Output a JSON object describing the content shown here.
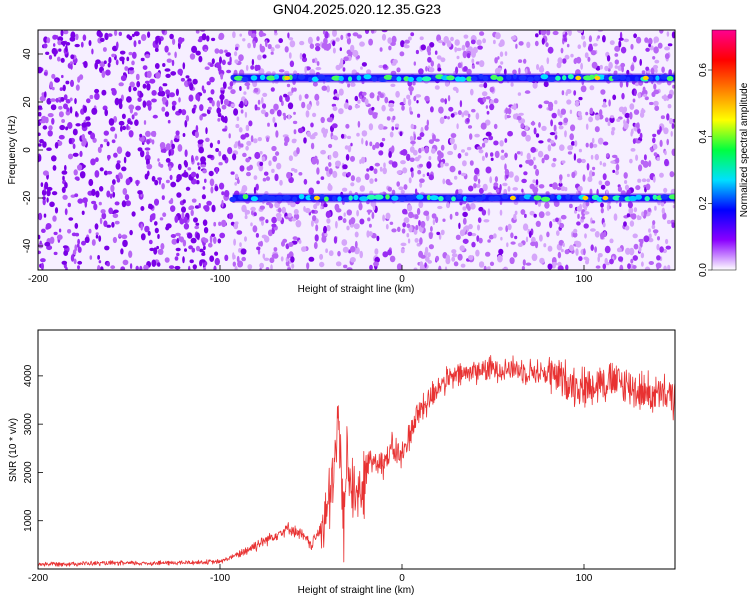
{
  "title": "GN04.2025.020.12.35.G23",
  "colors": {
    "trace": "#e83232",
    "axis": "#000000"
  },
  "chart_data": [
    {
      "type": "heatmap",
      "name": "spectrogram",
      "xlabel": "Height of straight line (km)",
      "ylabel": "Frequency (Hz)",
      "xlim": [
        -200,
        150
      ],
      "ylim": [
        -50,
        50
      ],
      "xticks": [
        -200,
        -100,
        0,
        100
      ],
      "yticks": [
        -40,
        -20,
        0,
        20,
        40
      ],
      "colorbar": {
        "label": "Normalized spectral amplitude",
        "range": [
          0,
          0.72
        ],
        "ticks": [
          "0.0",
          "0.2",
          "0.4",
          "0.6"
        ],
        "stops": [
          "#ffffff",
          "#8a00ff",
          "#0000ff",
          "#00e0ff",
          "#00ff40",
          "#ffff00",
          "#ff8000",
          "#ff0000",
          "#ff0090"
        ]
      },
      "features": [
        {
          "label": "upper line",
          "x_start": -93,
          "x_end": 150,
          "freq_hz": 30
        },
        {
          "label": "lower line",
          "x_start": -93,
          "x_end": 150,
          "freq_hz": -20
        }
      ]
    },
    {
      "type": "line",
      "name": "snr",
      "xlabel": "Height of straight line (km)",
      "ylabel": "SNR (10 * v/v)",
      "xlim": [
        -200,
        150
      ],
      "ylim": [
        0,
        4950
      ],
      "xticks": [
        -200,
        -100,
        0,
        100
      ],
      "yticks": [
        1000,
        2000,
        3000,
        4000
      ],
      "series": [
        {
          "name": "SNR",
          "x": [
            -200,
            -180,
            -160,
            -140,
            -120,
            -100,
            -90,
            -80,
            -70,
            -62,
            -55,
            -50,
            -45,
            -40,
            -37,
            -35,
            -32,
            -30,
            -27,
            -25,
            -22,
            -20,
            -15,
            -10,
            -5,
            0,
            5,
            10,
            15,
            20,
            30,
            40,
            50,
            60,
            70,
            80,
            90,
            100,
            110,
            120,
            130,
            140,
            150
          ],
          "y": [
            100,
            110,
            120,
            120,
            130,
            150,
            300,
            500,
            700,
            850,
            700,
            500,
            800,
            1300,
            2100,
            3200,
            900,
            2500,
            1500,
            1900,
            1200,
            2100,
            2300,
            2200,
            2500,
            2300,
            2900,
            3300,
            3500,
            3800,
            4000,
            4100,
            4150,
            4150,
            4100,
            4050,
            3900,
            3750,
            3900,
            3850,
            3700,
            3600,
            3550
          ]
        }
      ]
    }
  ]
}
